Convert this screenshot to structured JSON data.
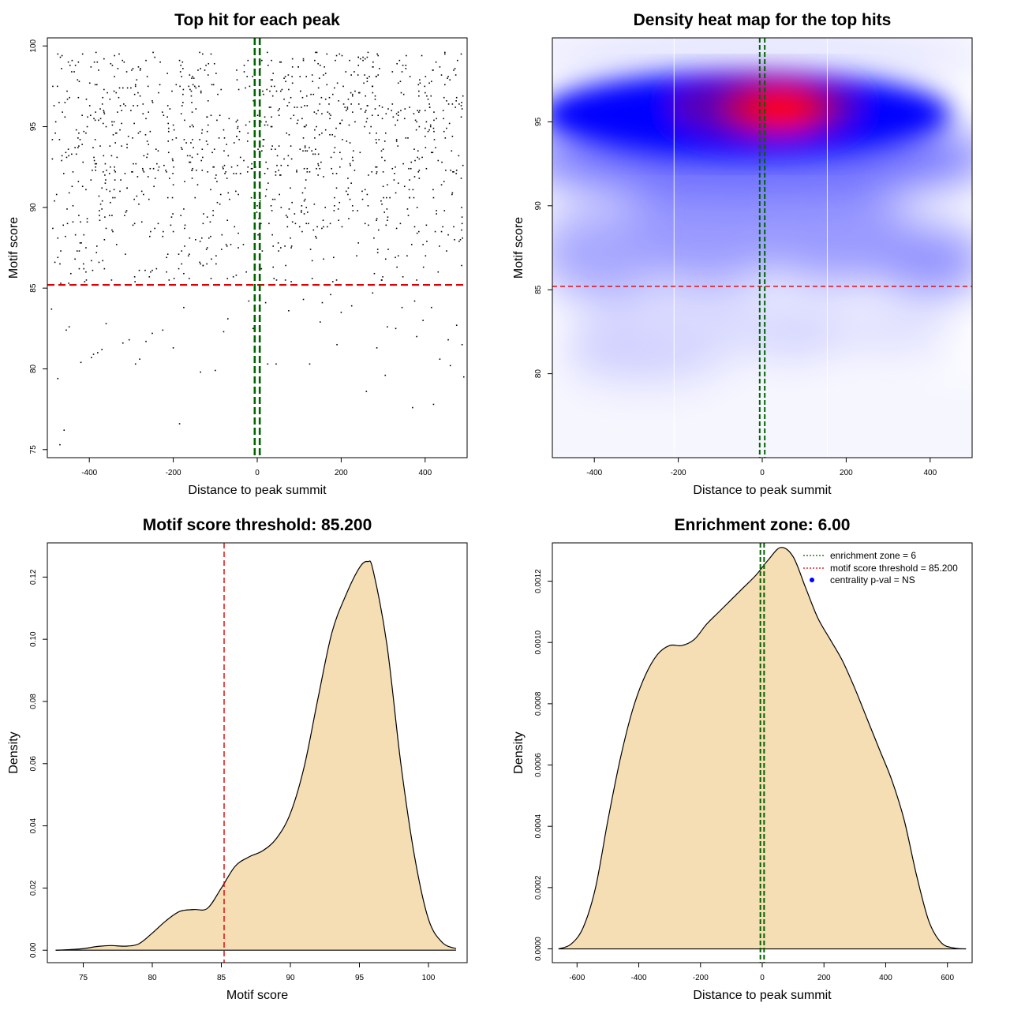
{
  "chart_data": [
    {
      "type": "scatter",
      "title": "Top hit for each peak",
      "xlabel": "Distance to peak summit",
      "ylabel": "Motif score",
      "xlim": [
        -500,
        500
      ],
      "ylim": [
        74.5,
        100.5
      ],
      "xticks": [
        -400,
        -200,
        0,
        200,
        400
      ],
      "yticks": [
        75,
        80,
        85,
        90,
        95,
        100
      ],
      "threshold_y": 85.2,
      "zone_x": [
        -6,
        6
      ],
      "colors": {
        "points": "#000000",
        "threshold": "#dd0000",
        "zone": "#006400"
      },
      "points": [
        [
          -475,
          79.4
        ],
        [
          -470,
          75.3
        ],
        [
          -460,
          76.2
        ],
        [
          -455,
          82.4
        ],
        [
          -448,
          82.6
        ],
        [
          -420,
          80.4
        ],
        [
          -395,
          80.7
        ],
        [
          -390,
          80.9
        ],
        [
          -380,
          81.0
        ],
        [
          -370,
          81.2
        ],
        [
          -360,
          82.8
        ],
        [
          -320,
          81.6
        ],
        [
          -305,
          81.8
        ],
        [
          -290,
          80.3
        ],
        [
          -280,
          80.6
        ],
        [
          -265,
          81.7
        ],
        [
          -250,
          82.2
        ],
        [
          -225,
          82.4
        ],
        [
          -200,
          81.3
        ],
        [
          -185,
          76.6
        ],
        [
          -175,
          83.8
        ],
        [
          -135,
          79.8
        ],
        [
          -100,
          79.9
        ],
        [
          -80,
          82.3
        ],
        [
          -70,
          83.1
        ],
        [
          -20,
          84.2
        ],
        [
          -10,
          82.5
        ],
        [
          -5,
          78.6
        ],
        [
          20,
          84.1
        ],
        [
          25,
          80.3
        ],
        [
          45,
          80.3
        ],
        [
          75,
          83.6
        ],
        [
          110,
          84.3
        ],
        [
          125,
          80.3
        ],
        [
          150,
          82.9
        ],
        [
          155,
          84.1
        ],
        [
          175,
          84.6
        ],
        [
          190,
          81.5
        ],
        [
          200,
          83.5
        ],
        [
          225,
          83.9
        ],
        [
          260,
          78.6
        ],
        [
          275,
          84.7
        ],
        [
          285,
          81.3
        ],
        [
          305,
          79.6
        ],
        [
          310,
          82.6
        ],
        [
          330,
          82.5
        ],
        [
          345,
          83.8
        ],
        [
          370,
          77.6
        ],
        [
          375,
          84.2
        ],
        [
          380,
          82.0
        ],
        [
          395,
          83.0
        ],
        [
          415,
          83.8
        ],
        [
          420,
          77.8
        ],
        [
          435,
          80.6
        ],
        [
          455,
          81.8
        ],
        [
          460,
          80.2
        ],
        [
          475,
          82.7
        ],
        [
          488,
          81.5
        ],
        [
          492,
          79.5
        ],
        [
          -490,
          83.7
        ]
      ]
    },
    {
      "type": "heatmap",
      "title": "Density heat map for the top hits",
      "xlabel": "Distance to peak summit",
      "ylabel": "Motif score",
      "xlim": [
        -500,
        500
      ],
      "ylim": [
        75,
        100
      ],
      "xticks": [
        -400,
        -200,
        0,
        200,
        400
      ],
      "yticks": [
        80,
        85,
        90,
        95
      ],
      "threshold_y": 85.2,
      "zone_x": [
        -6,
        6
      ],
      "gridlines_x": [
        -210,
        155
      ],
      "colors": {
        "low": "#ffffff",
        "mid": "#0000ff",
        "high": "#ff0000",
        "threshold": "#dd0000",
        "zone": "#006400"
      }
    },
    {
      "type": "area",
      "title": "Motif score threshold: 85.200",
      "xlabel": "Motif score",
      "ylabel": "Density",
      "xlim": [
        72.4,
        102.8
      ],
      "ylim": [
        -0.004,
        0.131
      ],
      "xticks": [
        75,
        80,
        85,
        90,
        95,
        100
      ],
      "yticks": [
        0.0,
        0.02,
        0.04,
        0.06,
        0.08,
        0.1,
        0.12
      ],
      "ytick_labels": [
        "0.00",
        "0.02",
        "0.04",
        "0.06",
        "0.08",
        "0.10",
        "0.12"
      ],
      "threshold_x": 85.2,
      "colors": {
        "fill": "#f5deb3",
        "line": "#000000",
        "threshold": "#dd0000"
      },
      "x": [
        73,
        74,
        75,
        76,
        77,
        78,
        79,
        80,
        81,
        82,
        83,
        84,
        85,
        86,
        87,
        88,
        89,
        90,
        91,
        92,
        93,
        94,
        95,
        95.6,
        96,
        97,
        98,
        99,
        100,
        101,
        102
      ],
      "y": [
        0.0,
        0.0002,
        0.0005,
        0.0012,
        0.0015,
        0.0013,
        0.002,
        0.0055,
        0.0095,
        0.0125,
        0.0131,
        0.0135,
        0.02,
        0.027,
        0.03,
        0.032,
        0.036,
        0.044,
        0.059,
        0.081,
        0.102,
        0.114,
        0.123,
        0.125,
        0.122,
        0.098,
        0.06,
        0.03,
        0.01,
        0.0025,
        0.0005
      ]
    },
    {
      "type": "area",
      "title": "Enrichment zone: 6.00",
      "xlabel": "Distance to peak summit",
      "ylabel": "Density",
      "xlim": [
        -680,
        680
      ],
      "ylim": [
        -4.5e-05,
        0.001325
      ],
      "xticks": [
        -600,
        -400,
        -200,
        0,
        200,
        400,
        600
      ],
      "yticks": [
        0.0,
        0.0002,
        0.0004,
        0.0006,
        0.0008,
        0.001,
        0.0012
      ],
      "ytick_labels": [
        "0.0000",
        "0.0002",
        "0.0004",
        "0.0006",
        "0.0008",
        "0.0010",
        "0.0012"
      ],
      "zone_x": [
        -6,
        6
      ],
      "colors": {
        "fill": "#f5deb3",
        "line": "#000000",
        "zone": "#006400",
        "threshold": "#dd0000",
        "centrality": "#0000ff"
      },
      "x": [
        -660,
        -620,
        -580,
        -540,
        -500,
        -460,
        -420,
        -380,
        -340,
        -300,
        -260,
        -220,
        -180,
        -140,
        -100,
        -60,
        -20,
        20,
        60,
        100,
        140,
        180,
        220,
        260,
        300,
        340,
        380,
        420,
        460,
        500,
        540,
        580,
        620,
        660
      ],
      "y": [
        0.0,
        1.5e-05,
        7e-05,
        0.0002,
        0.00042,
        0.00062,
        0.00078,
        0.00089,
        0.00096,
        0.00099,
        0.00099,
        0.00101,
        0.00106,
        0.0011,
        0.00114,
        0.00118,
        0.00122,
        0.00127,
        0.00131,
        0.00128,
        0.00118,
        0.00108,
        0.00101,
        0.00094,
        0.00085,
        0.00075,
        0.00065,
        0.00055,
        0.00042,
        0.00024,
        9e-05,
        2e-05,
        3e-06,
        0.0
      ],
      "legend": {
        "position": "top-right",
        "entries": [
          "enrichment zone = 6",
          "motif score threshold = 85.200",
          "centrality p-val = NS"
        ]
      }
    }
  ]
}
